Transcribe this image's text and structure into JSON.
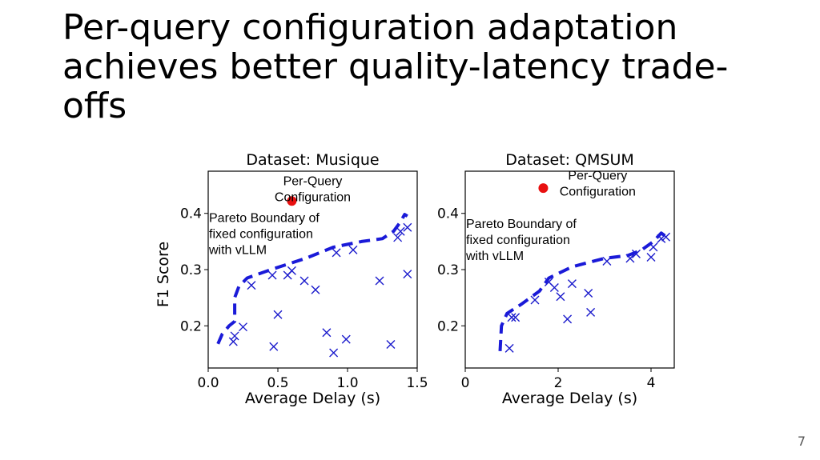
{
  "slide": {
    "title_lines": [
      "Per-query configuration adaptation",
      "achieves better quality-latency trade-",
      "offs"
    ],
    "page_number": "7"
  },
  "colors": {
    "marker": "#1a1acc",
    "frontier": "#1a1ad8",
    "highlight": "#e81010"
  },
  "chart_data": [
    {
      "type": "scatter",
      "title": "Dataset: Musique",
      "xlabel": "Average Delay (s)",
      "ylabel": "F1 Score",
      "xlim": [
        0.0,
        1.5
      ],
      "ylim": [
        0.125,
        0.475
      ],
      "xticks": [
        0.0,
        0.5,
        1.0,
        1.5
      ],
      "xtick_labels": [
        "0.0",
        "0.5",
        "1.0",
        "1.5"
      ],
      "yticks": [
        0.2,
        0.3,
        0.4
      ],
      "ytick_labels": [
        "0.2",
        "0.3",
        "0.4"
      ],
      "grid": false,
      "series": [
        {
          "marker": "x",
          "points": [
            [
              0.18,
              0.172
            ],
            [
              0.19,
              0.182
            ],
            [
              0.25,
              0.198
            ],
            [
              0.31,
              0.272
            ],
            [
              0.46,
              0.29
            ],
            [
              0.47,
              0.163
            ],
            [
              0.5,
              0.22
            ],
            [
              0.57,
              0.29
            ],
            [
              0.6,
              0.298
            ],
            [
              0.69,
              0.28
            ],
            [
              0.77,
              0.264
            ],
            [
              0.85,
              0.188
            ],
            [
              0.9,
              0.152
            ],
            [
              0.92,
              0.33
            ],
            [
              0.99,
              0.176
            ],
            [
              1.04,
              0.335
            ],
            [
              1.23,
              0.28
            ],
            [
              1.31,
              0.167
            ],
            [
              1.36,
              0.357
            ],
            [
              1.38,
              0.368
            ],
            [
              1.43,
              0.375
            ],
            [
              1.43,
              0.292
            ]
          ]
        },
        {
          "marker": "dashed-line",
          "points": [
            [
              0.07,
              0.168
            ],
            [
              0.1,
              0.185
            ],
            [
              0.15,
              0.2
            ],
            [
              0.19,
              0.208
            ],
            [
              0.19,
              0.25
            ],
            [
              0.22,
              0.27
            ],
            [
              0.28,
              0.285
            ],
            [
              0.45,
              0.3
            ],
            [
              0.7,
              0.32
            ],
            [
              0.9,
              0.34
            ],
            [
              1.1,
              0.35
            ],
            [
              1.25,
              0.355
            ],
            [
              1.33,
              0.368
            ],
            [
              1.38,
              0.385
            ],
            [
              1.41,
              0.398
            ],
            [
              1.43,
              0.395
            ]
          ]
        },
        {
          "marker": "dot",
          "points": [
            [
              0.6,
              0.422
            ]
          ]
        }
      ],
      "annotations": [
        {
          "lines": [
            "Per-Query",
            "Configuration"
          ],
          "x": 0.75,
          "y": 0.45,
          "align": "middle"
        },
        {
          "lines": [
            "Pareto Boundary of",
            "fixed configuration",
            "with vLLM"
          ],
          "x": 0.0,
          "y": 0.385,
          "align": "start"
        }
      ]
    },
    {
      "type": "scatter",
      "title": "Dataset: QMSUM",
      "xlabel": "Average Delay (s)",
      "ylabel": "",
      "xlim": [
        0.0,
        4.5
      ],
      "ylim": [
        0.125,
        0.475
      ],
      "xticks": [
        0,
        2,
        4
      ],
      "xtick_labels": [
        "0",
        "2",
        "4"
      ],
      "yticks": [
        0.2,
        0.3,
        0.4
      ],
      "ytick_labels": [
        "0.2",
        "0.3",
        "0.4"
      ],
      "grid": false,
      "series": [
        {
          "marker": "x",
          "points": [
            [
              0.95,
              0.16
            ],
            [
              1.0,
              0.215
            ],
            [
              1.08,
              0.215
            ],
            [
              1.5,
              0.246
            ],
            [
              1.8,
              0.278
            ],
            [
              1.92,
              0.268
            ],
            [
              2.05,
              0.252
            ],
            [
              2.2,
              0.212
            ],
            [
              2.3,
              0.275
            ],
            [
              2.65,
              0.258
            ],
            [
              2.7,
              0.224
            ],
            [
              3.05,
              0.315
            ],
            [
              3.55,
              0.32
            ],
            [
              3.68,
              0.328
            ],
            [
              4.0,
              0.322
            ],
            [
              4.05,
              0.34
            ],
            [
              4.22,
              0.355
            ],
            [
              4.32,
              0.358
            ]
          ]
        },
        {
          "marker": "dashed-line",
          "points": [
            [
              0.75,
              0.155
            ],
            [
              0.78,
              0.2
            ],
            [
              0.9,
              0.222
            ],
            [
              1.2,
              0.238
            ],
            [
              1.6,
              0.262
            ],
            [
              1.8,
              0.285
            ],
            [
              2.3,
              0.305
            ],
            [
              3.0,
              0.32
            ],
            [
              3.5,
              0.325
            ],
            [
              3.8,
              0.335
            ],
            [
              4.05,
              0.35
            ],
            [
              4.22,
              0.365
            ],
            [
              4.3,
              0.36
            ]
          ]
        },
        {
          "marker": "dot",
          "points": [
            [
              1.68,
              0.445
            ]
          ]
        }
      ],
      "annotations": [
        {
          "lines": [
            "Per-Query",
            "Configuration"
          ],
          "x": 2.85,
          "y": 0.46,
          "align": "middle"
        },
        {
          "lines": [
            "Pareto Boundary of",
            "fixed configuration",
            "with vLLM"
          ],
          "x": 0.0,
          "y": 0.374,
          "align": "start"
        }
      ]
    }
  ]
}
